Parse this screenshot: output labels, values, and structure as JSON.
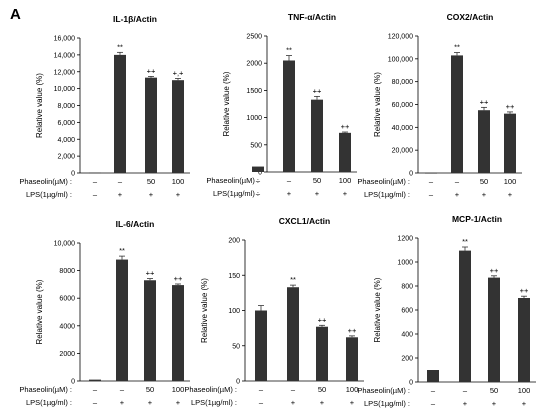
{
  "panel_label": "A",
  "row_labels": {
    "phaseolin": "Phaseolin(µM) :",
    "lps": "LPS(1µg/ml) :"
  },
  "colors": {
    "bar": "#333333",
    "axis": "#000000"
  },
  "chart_data": [
    {
      "type": "bar",
      "title": "IL-1β/Actin",
      "ylabel": "Relative value (%)",
      "ylim": [
        0,
        16000
      ],
      "yticks": [
        "0",
        "2,000",
        "4,000",
        "6,000",
        "8,000",
        "10,000",
        "12,000",
        "14,000",
        "16,000"
      ],
      "values": [
        60,
        14000,
        11300,
        11000
      ],
      "errors": [
        0,
        300,
        150,
        200
      ],
      "annotations": [
        "",
        "**",
        "++",
        "+,+"
      ],
      "phaseolin": [
        "–",
        "–",
        "50",
        "100"
      ],
      "lps": [
        "–",
        "+",
        "+",
        "+"
      ]
    },
    {
      "type": "bar",
      "title": "TNF-α/Actin",
      "ylabel": "Relative value (%)",
      "ylim": [
        0,
        2500
      ],
      "yticks": [
        "0",
        "500",
        "1000",
        "1500",
        "2000",
        "2500"
      ],
      "values": [
        100,
        2050,
        1330,
        720
      ],
      "errors": [
        0,
        90,
        60,
        15
      ],
      "annotations": [
        "",
        "**",
        "++",
        "++"
      ],
      "phaseolin": [
        "–",
        "–",
        "50",
        "100"
      ],
      "lps": [
        "–",
        "+",
        "+",
        "+"
      ]
    },
    {
      "type": "bar",
      "title": "COX2/Actin",
      "ylabel": "Relative value (%)",
      "ylim": [
        0,
        120000
      ],
      "yticks": [
        "0",
        "20,000",
        "40,000",
        "60,000",
        "80,000",
        "100,000",
        "120,000"
      ],
      "values": [
        200,
        103000,
        55000,
        52000
      ],
      "errors": [
        0,
        2500,
        2500,
        1500
      ],
      "annotations": [
        "",
        "**",
        "++",
        "++"
      ],
      "phaseolin": [
        "–",
        "–",
        "50",
        "100"
      ],
      "lps": [
        "–",
        "+",
        "+",
        "+"
      ]
    },
    {
      "type": "bar",
      "title": "IL-6/Actin",
      "ylabel": "Relative value (%)",
      "ylim": [
        0,
        10000
      ],
      "yticks": [
        "0",
        "2000",
        "4000",
        "6000",
        "8000",
        "10,000"
      ],
      "values": [
        100,
        8800,
        7300,
        6950
      ],
      "errors": [
        0,
        250,
        120,
        80
      ],
      "annotations": [
        "",
        "**",
        "++",
        "++"
      ],
      "phaseolin": [
        "–",
        "–",
        "50",
        "100"
      ],
      "lps": [
        "–",
        "+",
        "+",
        "+"
      ]
    },
    {
      "type": "bar",
      "title": "CXCL1/Actin",
      "ylabel": "Relative value (%)",
      "ylim": [
        0,
        200
      ],
      "yticks": [
        "0",
        "50",
        "100",
        "150",
        "200"
      ],
      "values": [
        100,
        133,
        77,
        62
      ],
      "errors": [
        7,
        3,
        2,
        2
      ],
      "annotations": [
        "",
        "**",
        "++",
        "++"
      ],
      "phaseolin": [
        "–",
        "–",
        "50",
        "100"
      ],
      "lps": [
        "–",
        "+",
        "+",
        "+"
      ]
    },
    {
      "type": "bar",
      "title": "MCP-1/Actin",
      "ylabel": "Relative value (%)",
      "ylim": [
        0,
        1200
      ],
      "yticks": [
        "0",
        "200",
        "400",
        "600",
        "800",
        "1000",
        "1200"
      ],
      "values": [
        100,
        1095,
        870,
        700
      ],
      "errors": [
        0,
        30,
        15,
        15
      ],
      "annotations": [
        "",
        "**",
        "++",
        "++"
      ],
      "phaseolin": [
        "–",
        "–",
        "50",
        "100"
      ],
      "lps": [
        "–",
        "+",
        "+",
        "+"
      ]
    }
  ]
}
